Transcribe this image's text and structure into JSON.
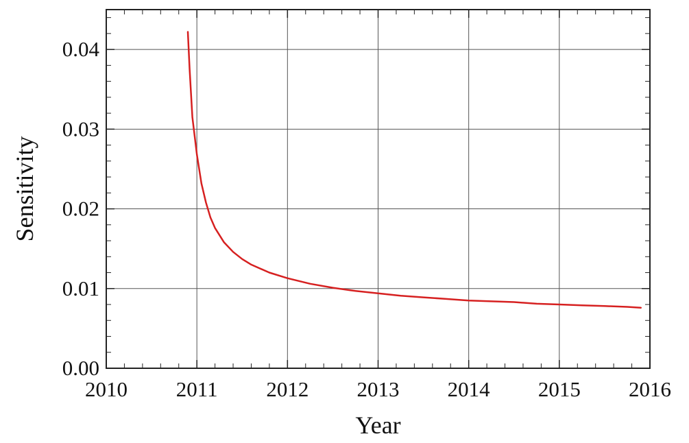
{
  "chart_data": {
    "type": "line",
    "title": "",
    "xlabel": "Year",
    "ylabel": "Sensitivity",
    "xlim": [
      2010,
      2016
    ],
    "ylim": [
      0,
      0.045
    ],
    "x_ticks": [
      "2010",
      "2011",
      "2012",
      "2013",
      "2014",
      "2015",
      "2016"
    ],
    "y_ticks": [
      "0.00",
      "0.01",
      "0.02",
      "0.03",
      "0.04"
    ],
    "grid": true,
    "series": [
      {
        "color": "#d62020",
        "x": [
          2010.9,
          2010.92,
          2010.95,
          2011.0,
          2011.05,
          2011.1,
          2011.15,
          2011.2,
          2011.3,
          2011.4,
          2011.5,
          2011.6,
          2011.8,
          2012.0,
          2012.25,
          2012.5,
          2012.75,
          2013.0,
          2013.25,
          2013.5,
          2013.75,
          2014.0,
          2014.25,
          2014.5,
          2014.75,
          2015.0,
          2015.25,
          2015.5,
          2015.75,
          2015.9
        ],
        "y": [
          0.0422,
          0.0375,
          0.0315,
          0.0268,
          0.0232,
          0.0208,
          0.0189,
          0.0176,
          0.0158,
          0.0146,
          0.0137,
          0.013,
          0.012,
          0.0113,
          0.0106,
          0.0101,
          0.0097,
          0.0094,
          0.0091,
          0.0089,
          0.0087,
          0.0085,
          0.0084,
          0.0083,
          0.0081,
          0.008,
          0.0079,
          0.0078,
          0.0077,
          0.0076
        ]
      }
    ]
  }
}
